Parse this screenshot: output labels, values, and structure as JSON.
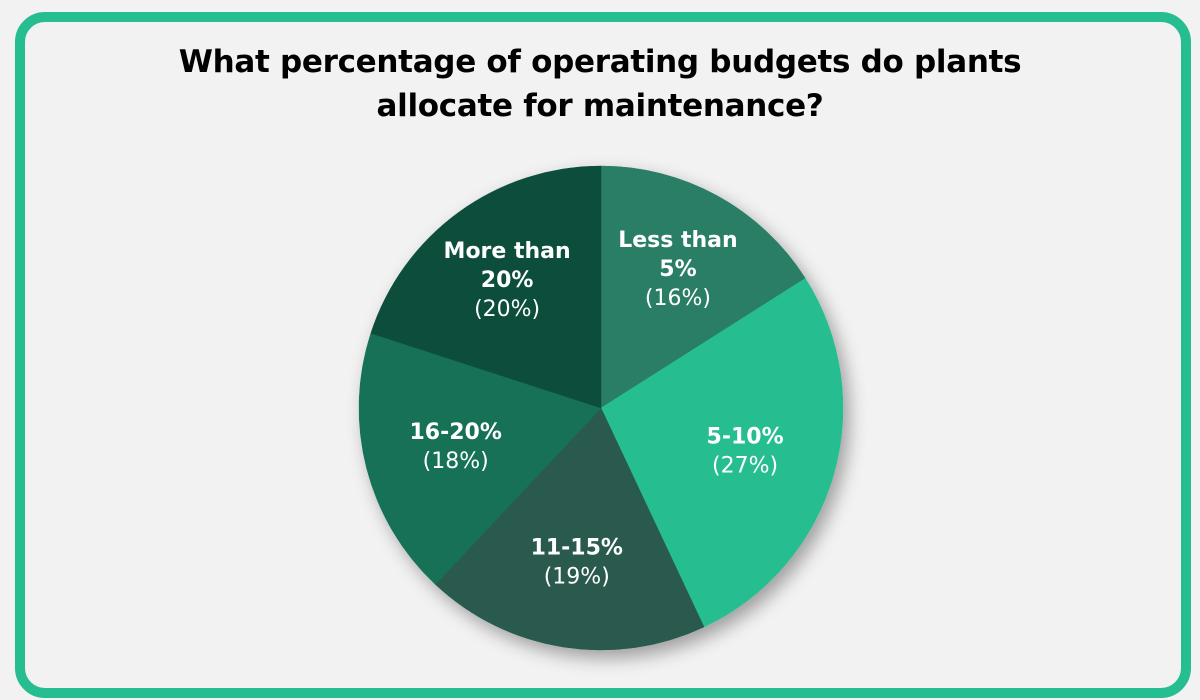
{
  "title": {
    "line1": "What percentage of operating budgets do plants",
    "line2": "allocate for maintenance?"
  },
  "colors": {
    "border": "#26bd91",
    "background": "#f2f2f2"
  },
  "chart_data": {
    "type": "pie",
    "title": "What percentage of operating budgets do plants allocate for maintenance?",
    "start_angle": "12 o'clock, clockwise",
    "categories": [
      "Less than 5%",
      "5-10%",
      "11-15%",
      "16-20%",
      "More than 20%"
    ],
    "values": [
      16,
      27,
      19,
      18,
      20
    ],
    "unit": "%",
    "slices": [
      {
        "label_lines": [
          "Less than",
          "5%"
        ],
        "pct_label": "(16%)",
        "value": 16,
        "color": "#2a7e66"
      },
      {
        "label_lines": [
          "5-10%"
        ],
        "pct_label": "(27%)",
        "value": 27,
        "color": "#26bd91"
      },
      {
        "label_lines": [
          "11-15%"
        ],
        "pct_label": "(19%)",
        "value": 19,
        "color": "#2b5a4d"
      },
      {
        "label_lines": [
          "16-20%"
        ],
        "pct_label": "(18%)",
        "value": 18,
        "color": "#177157"
      },
      {
        "label_lines": [
          "More than",
          "20%"
        ],
        "pct_label": "(20%)",
        "value": 20,
        "color": "#0f4e3b"
      }
    ],
    "legend": "none (labels inside slices)"
  }
}
